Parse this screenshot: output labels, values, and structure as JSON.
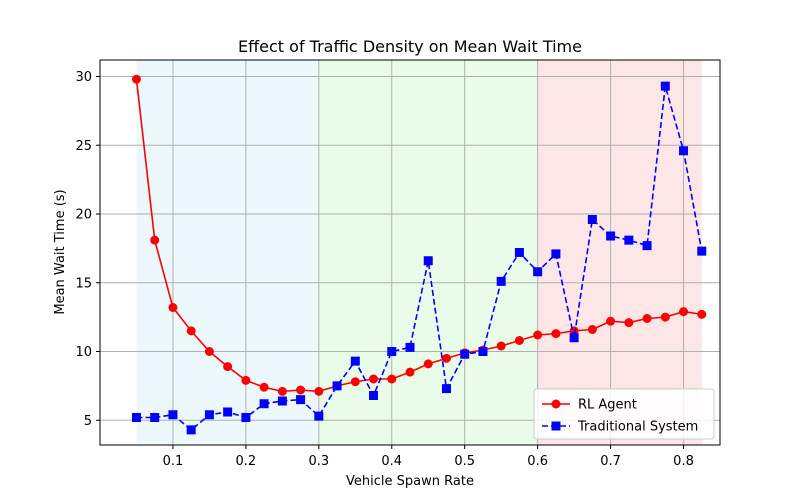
{
  "chart_data": {
    "type": "line",
    "title": "Effect of Traffic Density on Mean Wait Time",
    "xlabel": "Vehicle Spawn Rate",
    "ylabel": "Mean Wait Time (s)",
    "xlim": [
      0.0,
      0.85
    ],
    "ylim": [
      3.2,
      31.2
    ],
    "x_ticks": [
      0.1,
      0.2,
      0.3,
      0.4,
      0.5,
      0.6,
      0.7,
      0.8
    ],
    "x_tick_labels": [
      "0.1",
      "0.2",
      "0.3",
      "0.4",
      "0.5",
      "0.6",
      "0.7",
      "0.8"
    ],
    "y_ticks": [
      5,
      10,
      15,
      20,
      25,
      30
    ],
    "y_tick_labels": [
      "5",
      "10",
      "15",
      "20",
      "25",
      "30"
    ],
    "grid": true,
    "legend_position": "lower-right",
    "regions": [
      {
        "x_start": 0.05,
        "x_end": 0.3,
        "color": "#87ceeb",
        "opacity": 0.15
      },
      {
        "x_start": 0.3,
        "x_end": 0.6,
        "color": "#90ee90",
        "opacity": 0.2
      },
      {
        "x_start": 0.6,
        "x_end": 0.825,
        "color": "#f08080",
        "opacity": 0.2
      }
    ],
    "x": [
      0.05,
      0.075,
      0.1,
      0.125,
      0.15,
      0.175,
      0.2,
      0.225,
      0.25,
      0.275,
      0.3,
      0.325,
      0.35,
      0.375,
      0.4,
      0.425,
      0.45,
      0.475,
      0.5,
      0.525,
      0.55,
      0.575,
      0.6,
      0.625,
      0.65,
      0.675,
      0.7,
      0.725,
      0.75,
      0.775,
      0.8,
      0.825
    ],
    "series": [
      {
        "name": "RL Agent",
        "color": "#ff0000",
        "line_style": "solid",
        "marker": "circle",
        "values": [
          29.8,
          18.1,
          13.2,
          11.5,
          10.0,
          8.9,
          7.9,
          7.4,
          7.1,
          7.2,
          7.1,
          7.5,
          7.8,
          8.0,
          8.0,
          8.5,
          9.1,
          9.5,
          9.9,
          10.1,
          10.4,
          10.8,
          11.2,
          11.3,
          11.5,
          11.6,
          12.2,
          12.1,
          12.4,
          12.5,
          12.9,
          12.7
        ]
      },
      {
        "name": "Traditional System",
        "color": "#0000ff",
        "line_style": "dashed",
        "marker": "square",
        "values": [
          5.2,
          5.2,
          5.4,
          4.3,
          5.4,
          5.6,
          5.2,
          6.2,
          6.4,
          6.5,
          5.3,
          7.5,
          9.3,
          6.8,
          10.0,
          10.3,
          16.6,
          7.3,
          9.8,
          10.0,
          15.1,
          17.2,
          15.8,
          17.1,
          11.0,
          19.6,
          18.4,
          18.1,
          17.7,
          29.3,
          24.6,
          17.3
        ]
      }
    ]
  }
}
